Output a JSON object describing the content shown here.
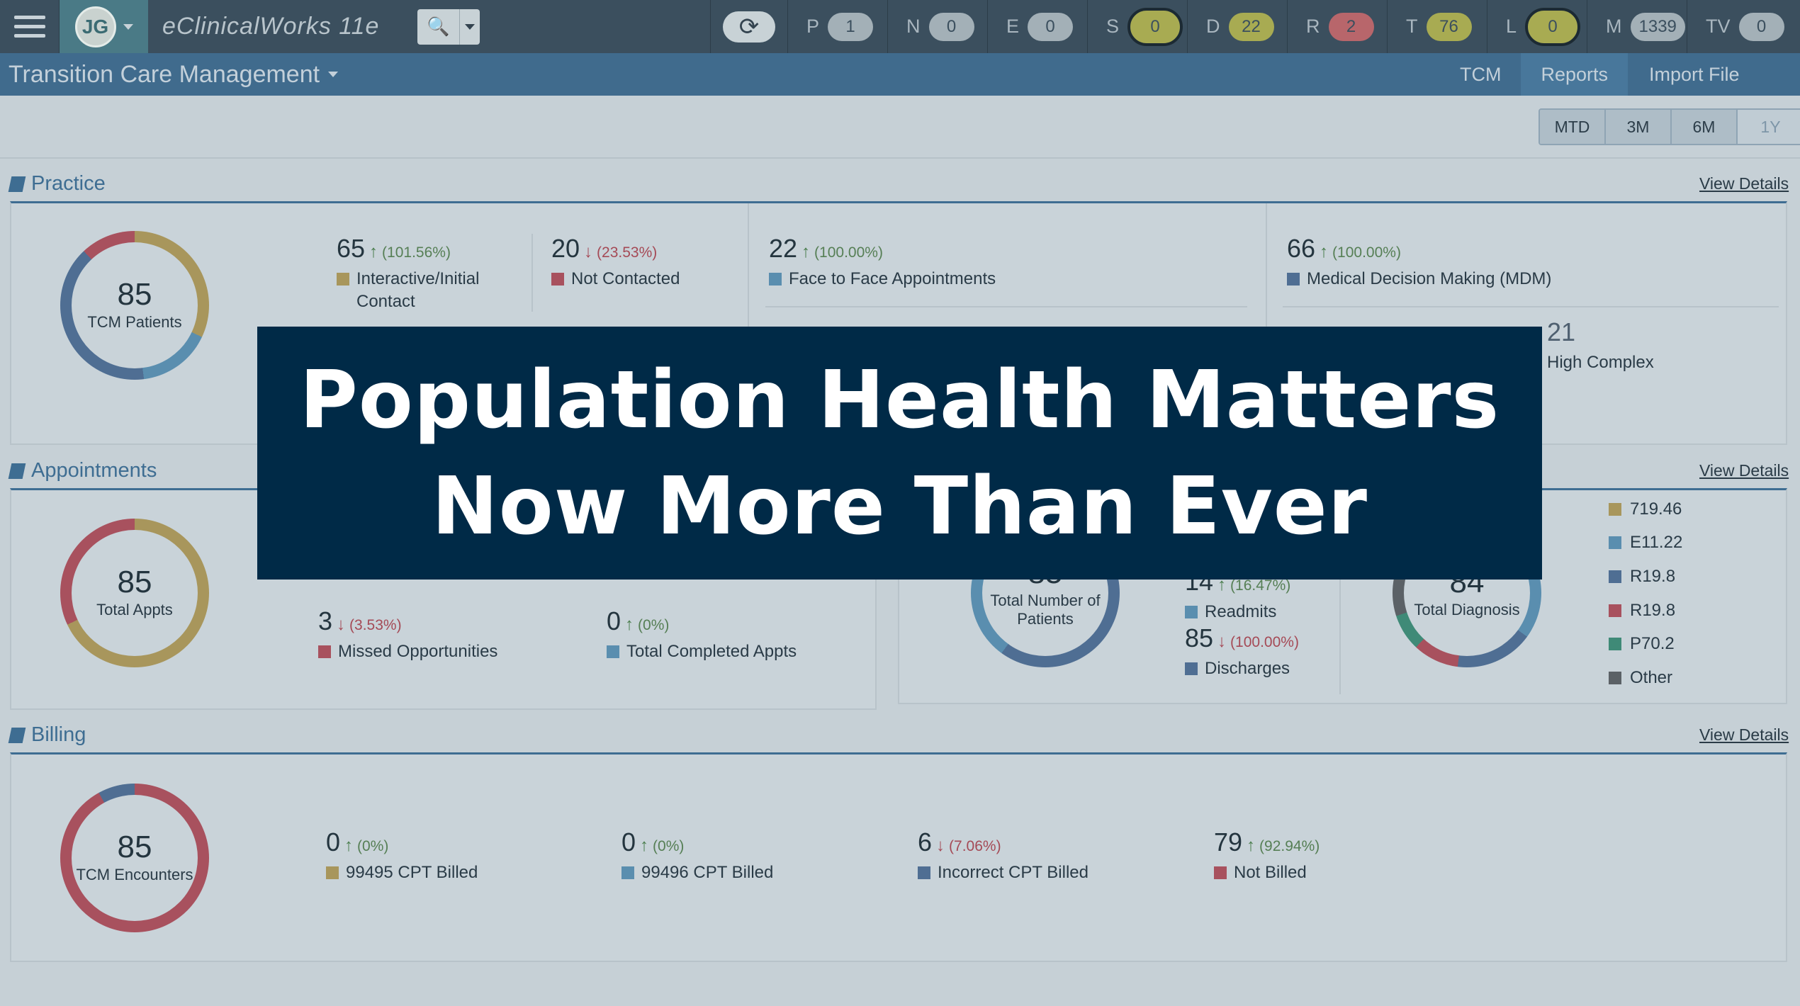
{
  "topbar": {
    "user_initials": "JG",
    "app_name": "eClinicalWorks 11e",
    "counters": [
      {
        "letter": "P",
        "count": "1",
        "color": "#a3b0b7",
        "ring": false
      },
      {
        "letter": "N",
        "count": "0",
        "color": "#a3b0b7",
        "ring": false
      },
      {
        "letter": "E",
        "count": "0",
        "color": "#a3b0b7",
        "ring": false
      },
      {
        "letter": "S",
        "count": "0",
        "color": "#a8ab52",
        "ring": true
      },
      {
        "letter": "D",
        "count": "22",
        "color": "#a8ab52",
        "ring": false
      },
      {
        "letter": "R",
        "count": "2",
        "color": "#b8666b",
        "ring": false
      },
      {
        "letter": "T",
        "count": "76",
        "color": "#a8ab52",
        "ring": false
      },
      {
        "letter": "L",
        "count": "0",
        "color": "#a8ab52",
        "ring": true
      },
      {
        "letter": "M",
        "count": "1339",
        "color": "#a3b0b7",
        "ring": false
      },
      {
        "letter": "TV",
        "count": "0",
        "color": "#a3b0b7",
        "ring": false
      }
    ]
  },
  "subheader": {
    "module_title": "Transition Care Management",
    "nav": [
      "TCM",
      "Reports",
      "Import File"
    ]
  },
  "range_buttons": [
    "MTD",
    "3M",
    "6M",
    "1Y"
  ],
  "view_details": "View Details",
  "sections": {
    "practice": {
      "title": "Practice",
      "donut": {
        "value": "85",
        "label": "TCM Patients"
      },
      "metrics": [
        {
          "value": "65",
          "trend": "up",
          "pct": "(101.56%)",
          "label": "Interactive/Initial Contact",
          "color": "#a8965c"
        },
        {
          "value": "20",
          "trend": "down",
          "pct": "(23.53%)",
          "label": "Not Contacted",
          "color": "#a8515e"
        },
        {
          "value": "22",
          "trend": "up",
          "pct": "(100.00%)",
          "label": "Face to Face Appointments",
          "color": "#5a8eaf"
        },
        {
          "value": "66",
          "trend": "up",
          "pct": "(100.00%)",
          "label": "Medical Decision Making (MDM)",
          "color": "#4f6e93"
        }
      ],
      "partial": {
        "value": "21",
        "label": "High Complex"
      }
    },
    "appointments": {
      "title": "Appointments",
      "donut": {
        "value": "85",
        "label": "Total Appts"
      },
      "metrics": [
        {
          "value": "3",
          "trend": "down",
          "pct": "(3.53%)",
          "label": "Missed Opportunities",
          "color": "#a8515e"
        },
        {
          "value": "0",
          "trend": "up",
          "pct": "(0%)",
          "label": "Total Completed Appts",
          "color": "#5a8eaf"
        }
      ]
    },
    "readmissions": {
      "donut": {
        "value": "85",
        "label": "Total Number of Patients"
      },
      "metrics": [
        {
          "value": "14",
          "trend": "up",
          "pct": "(16.47%)",
          "label": "Readmits",
          "color": "#5a8eaf"
        },
        {
          "value": "85",
          "trend": "down",
          "pct": "(100.00%)",
          "label": "Discharges",
          "color": "#4f6e93"
        }
      ]
    },
    "diagnosis": {
      "donut": {
        "value": "84",
        "label": "Total Diagnosis"
      },
      "legend": [
        {
          "label": "719.46",
          "color": "#a8965c"
        },
        {
          "label": "E11.22",
          "color": "#5a8eaf"
        },
        {
          "label": "R19.8",
          "color": "#4f6e93"
        },
        {
          "label": "R19.8",
          "color": "#a8515e"
        },
        {
          "label": "P70.2",
          "color": "#3f8a77"
        },
        {
          "label": "Other",
          "color": "#5b6166"
        }
      ]
    },
    "billing": {
      "title": "Billing",
      "donut": {
        "value": "85",
        "label": "TCM Encounters"
      },
      "metrics": [
        {
          "value": "0",
          "trend": "up",
          "pct": "(0%)",
          "label": "99495 CPT Billed",
          "color": "#a8965c"
        },
        {
          "value": "0",
          "trend": "up",
          "pct": "(0%)",
          "label": "99496 CPT Billed",
          "color": "#5a8eaf"
        },
        {
          "value": "6",
          "trend": "down",
          "pct": "(7.06%)",
          "label": "Incorrect CPT Billed",
          "color": "#4f6e93"
        },
        {
          "value": "79",
          "trend": "up",
          "pct": "(92.94%)",
          "label": "Not Billed",
          "color": "#a8515e"
        }
      ]
    }
  },
  "overlay": {
    "line1": "Population Health Matters",
    "line2": "Now More Than Ever"
  }
}
